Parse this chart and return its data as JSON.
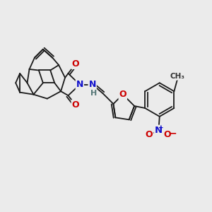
{
  "background_color": "#ebebeb",
  "bond_color": "#1a1a1a",
  "bond_width": 1.3,
  "figsize": [
    3.0,
    3.0
  ],
  "dpi": 100,
  "xlim": [
    0,
    10
  ],
  "ylim": [
    0,
    10
  ]
}
